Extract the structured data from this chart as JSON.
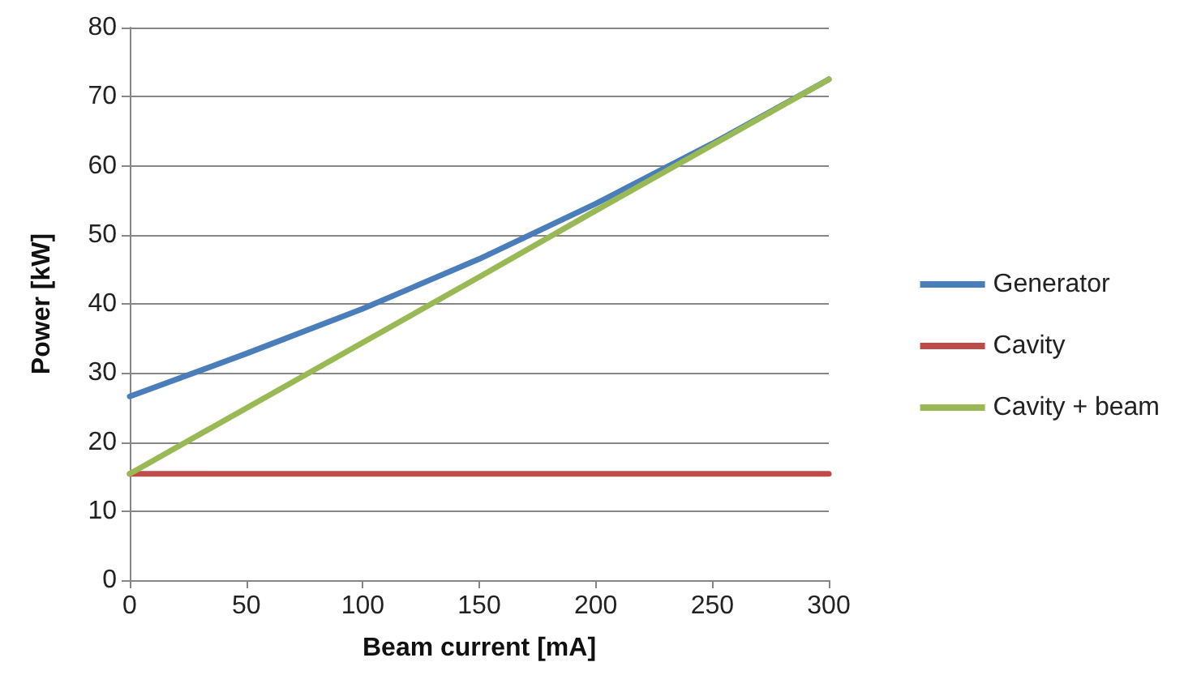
{
  "chart_data": {
    "type": "line",
    "xlabel": "Beam current [mA]",
    "ylabel": "Power [kW]",
    "x": [
      0,
      50,
      100,
      150,
      200,
      250,
      300
    ],
    "series": [
      {
        "name": "Generator",
        "color": "#4a7ebb",
        "values": [
          26.6,
          32.8,
          39.3,
          46.5,
          54.5,
          63.2,
          72.5
        ]
      },
      {
        "name": "Cavity",
        "color": "#be4b48",
        "values": [
          15.4,
          15.4,
          15.4,
          15.4,
          15.4,
          15.4,
          15.4
        ]
      },
      {
        "name": "Cavity + beam",
        "color": "#98b954",
        "values": [
          15.4,
          24.9,
          34.4,
          43.9,
          53.5,
          63.0,
          72.5
        ]
      }
    ],
    "xlim": [
      0,
      300
    ],
    "xticks": [
      0,
      50,
      100,
      150,
      200,
      250,
      300
    ],
    "ylim": [
      0,
      80
    ],
    "yticks": [
      0,
      10,
      20,
      30,
      40,
      50,
      60,
      70,
      80
    ],
    "grid": "y",
    "legend": "right",
    "marker": "none",
    "line_style": "solid"
  }
}
